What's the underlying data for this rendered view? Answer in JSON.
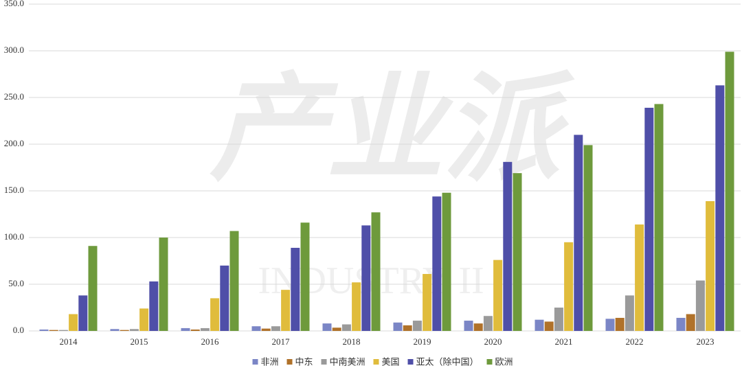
{
  "chart_data": {
    "type": "bar",
    "watermark": "产业派",
    "watermark_sub": "INDUSTRY II",
    "categories": [
      "2014",
      "2015",
      "2016",
      "2017",
      "2018",
      "2019",
      "2020",
      "2021",
      "2022",
      "2023"
    ],
    "series": [
      {
        "name": "非洲",
        "color": "#7b86c6",
        "values": [
          1.5,
          2,
          3,
          5,
          8,
          9,
          11,
          12,
          13,
          14
        ]
      },
      {
        "name": "中东",
        "color": "#b0722a",
        "values": [
          1,
          1,
          1.5,
          2.5,
          3.5,
          6,
          8,
          10,
          14,
          18
        ]
      },
      {
        "name": "中南美洲",
        "color": "#9a9a9a",
        "values": [
          1,
          2,
          3,
          5,
          7,
          11,
          16,
          25,
          38,
          54
        ]
      },
      {
        "name": "美国",
        "color": "#e0bc3c",
        "values": [
          18,
          24,
          35,
          44,
          52,
          61,
          76,
          95,
          114,
          139
        ]
      },
      {
        "name": "亚太（除中国）",
        "color": "#4f4fa8",
        "values": [
          38,
          53,
          70,
          89,
          113,
          144,
          181,
          210,
          239,
          263
        ]
      },
      {
        "name": "欧洲",
        "color": "#6e9a3c",
        "values": [
          91,
          100,
          107,
          116,
          127,
          148,
          169,
          199,
          243,
          299
        ]
      }
    ],
    "ylim": [
      0,
      350
    ],
    "yticks": [
      {
        "value": 0,
        "label": "0.0"
      },
      {
        "value": 50,
        "label": "50.0"
      },
      {
        "value": 100,
        "label": "100.0"
      },
      {
        "value": 150,
        "label": "150.0"
      },
      {
        "value": 200,
        "label": "200.0"
      },
      {
        "value": 250,
        "label": "250.0"
      },
      {
        "value": 300,
        "label": "300.0"
      },
      {
        "value": 350,
        "label": "350.0"
      }
    ],
    "grid": true
  }
}
